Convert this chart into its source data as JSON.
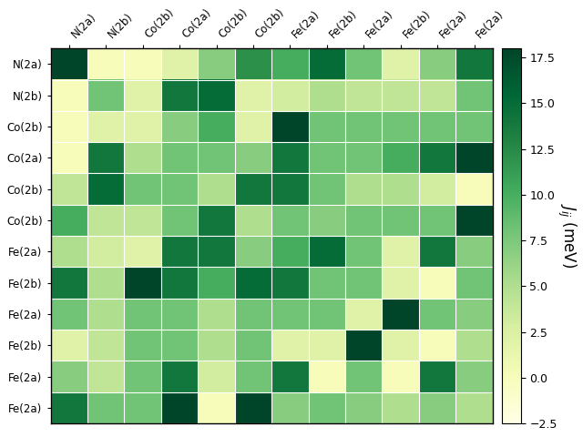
{
  "row_labels": [
    "N(2a)",
    "N(2b)",
    "Co(2b)",
    "Co(2a)",
    "Co(2b)",
    "Co(2b)",
    "Fe(2a)",
    "Fe(2b)",
    "Fe(2a)",
    "Fe(2b)",
    "Fe(2a)",
    "Fe(2a)"
  ],
  "col_labels": [
    "N(2a)",
    "N(2b)",
    "Co(2b)",
    "Co(2a)",
    "Co(2b)",
    "Co(2b)",
    "Fe(2a)",
    "Fe(2b)",
    "Fe(2a)",
    "Fe(2b)",
    "Fe(2a)",
    "Fe(2a)"
  ],
  "matrix": [
    [
      18,
      0,
      0,
      2,
      7,
      12,
      10,
      15,
      8,
      2,
      7,
      14
    ],
    [
      0,
      8,
      2,
      14,
      15,
      2,
      3,
      5,
      4,
      4,
      4,
      8
    ],
    [
      0,
      2,
      2,
      7,
      10,
      2,
      18,
      8,
      8,
      8,
      8,
      8
    ],
    [
      0,
      14,
      5,
      8,
      8,
      7,
      14,
      8,
      8,
      10,
      14,
      18
    ],
    [
      4,
      15,
      8,
      8,
      5,
      14,
      14,
      8,
      5,
      5,
      3,
      0
    ],
    [
      10,
      4,
      4,
      8,
      14,
      5,
      8,
      7,
      8,
      8,
      8,
      18
    ],
    [
      5,
      3,
      2,
      14,
      14,
      7,
      10,
      15,
      8,
      2,
      14,
      7
    ],
    [
      14,
      5,
      18,
      14,
      10,
      15,
      14,
      8,
      8,
      2,
      0,
      8
    ],
    [
      8,
      5,
      8,
      8,
      5,
      8,
      8,
      8,
      2,
      18,
      8,
      7
    ],
    [
      2,
      4,
      8,
      8,
      5,
      8,
      2,
      2,
      18,
      2,
      0,
      5
    ],
    [
      7,
      4,
      8,
      14,
      3,
      8,
      14,
      0,
      8,
      0,
      14,
      7
    ],
    [
      14,
      8,
      8,
      18,
      0,
      18,
      7,
      8,
      7,
      5,
      7,
      5
    ]
  ],
  "vmin": -2.5,
  "vmax": 18.0,
  "cmap": "YlGn",
  "colorbar_ticks": [
    -2.5,
    0.0,
    2.5,
    5.0,
    7.5,
    10.0,
    12.5,
    15.0,
    17.5
  ],
  "colorbar_label": "$J_{ij}$ (meV)",
  "figsize": [
    6.4,
    4.8
  ],
  "dpi": 100
}
